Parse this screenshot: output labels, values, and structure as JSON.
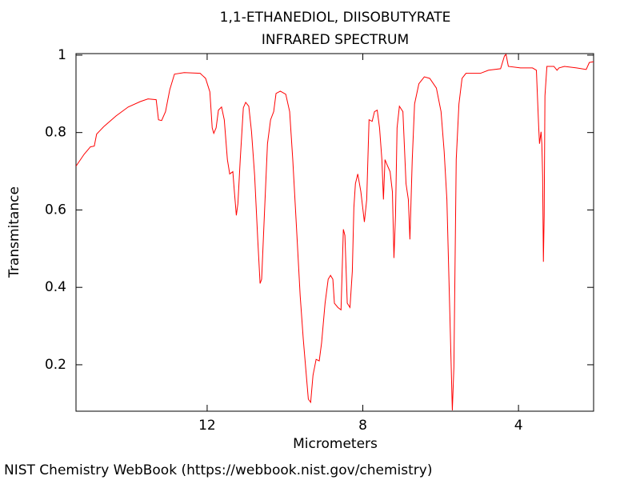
{
  "chart_data": {
    "type": "line",
    "title": "1,1-ETHANEDIOL, DIISOBUTYRATE",
    "subtitle": "INFRARED SPECTRUM",
    "x_label": "Micrometers",
    "y_label": "Transmitance",
    "source": "NIST Chemistry WebBook (https://webbook.nist.gov/chemistry)",
    "xlim": [
      15.37,
      2.07
    ],
    "ylim": [
      0.08,
      1.004
    ],
    "xticks": [
      12,
      8,
      4
    ],
    "yticks": [
      0.2,
      0.4,
      0.6,
      0.8,
      1
    ],
    "grid": false,
    "series": [
      {
        "color": "#ff0000",
        "x": [
          15.37,
          15.16,
          15.0,
          14.9,
          14.84,
          14.65,
          14.34,
          14.03,
          13.72,
          13.52,
          13.31,
          13.25,
          13.17,
          13.07,
          12.96,
          12.84,
          12.59,
          12.18,
          12.04,
          11.93,
          11.87,
          11.83,
          11.77,
          11.71,
          11.63,
          11.56,
          11.48,
          11.42,
          11.34,
          11.3,
          11.25,
          11.21,
          11.15,
          11.07,
          11.01,
          10.93,
          10.86,
          10.78,
          10.7,
          10.64,
          10.6,
          10.53,
          10.45,
          10.37,
          10.29,
          10.23,
          10.12,
          9.98,
          9.88,
          9.8,
          9.71,
          9.61,
          9.53,
          9.47,
          9.4,
          9.34,
          9.28,
          9.2,
          9.12,
          9.06,
          8.97,
          8.89,
          8.83,
          8.77,
          8.73,
          8.64,
          8.56,
          8.5,
          8.46,
          8.4,
          8.33,
          8.27,
          8.23,
          8.19,
          8.13,
          8.05,
          7.96,
          7.9,
          7.84,
          7.76,
          7.7,
          7.63,
          7.57,
          7.51,
          7.47,
          7.43,
          7.39,
          7.3,
          7.24,
          7.2,
          7.16,
          7.12,
          7.06,
          6.97,
          6.89,
          6.83,
          6.79,
          6.73,
          6.67,
          6.56,
          6.42,
          6.28,
          6.11,
          5.99,
          5.91,
          5.84,
          5.76,
          5.7,
          5.66,
          5.6,
          5.53,
          5.45,
          5.35,
          4.98,
          4.77,
          4.46,
          4.36,
          4.32,
          4.26,
          3.95,
          3.64,
          3.54,
          3.48,
          3.46,
          3.42,
          3.4,
          3.38,
          3.36,
          3.34,
          3.32,
          3.27,
          3.09,
          3.01,
          2.96,
          2.82,
          2.51,
          2.26,
          2.18,
          2.07
        ],
        "values": [
          0.713,
          0.744,
          0.763,
          0.765,
          0.796,
          0.816,
          0.843,
          0.866,
          0.88,
          0.887,
          0.885,
          0.833,
          0.831,
          0.854,
          0.911,
          0.951,
          0.955,
          0.953,
          0.94,
          0.905,
          0.812,
          0.798,
          0.812,
          0.858,
          0.866,
          0.833,
          0.73,
          0.693,
          0.699,
          0.647,
          0.586,
          0.616,
          0.73,
          0.864,
          0.878,
          0.868,
          0.802,
          0.689,
          0.524,
          0.41,
          0.421,
          0.586,
          0.771,
          0.833,
          0.854,
          0.901,
          0.907,
          0.899,
          0.854,
          0.73,
          0.565,
          0.379,
          0.266,
          0.194,
          0.111,
          0.103,
          0.173,
          0.214,
          0.21,
          0.256,
          0.359,
          0.421,
          0.431,
          0.421,
          0.359,
          0.348,
          0.342,
          0.55,
          0.534,
          0.359,
          0.348,
          0.441,
          0.606,
          0.668,
          0.693,
          0.647,
          0.569,
          0.627,
          0.833,
          0.829,
          0.854,
          0.858,
          0.812,
          0.73,
          0.627,
          0.73,
          0.72,
          0.699,
          0.647,
          0.476,
          0.586,
          0.812,
          0.868,
          0.854,
          0.668,
          0.627,
          0.524,
          0.73,
          0.874,
          0.926,
          0.944,
          0.94,
          0.915,
          0.854,
          0.751,
          0.627,
          0.317,
          0.082,
          0.194,
          0.73,
          0.874,
          0.94,
          0.953,
          0.953,
          0.961,
          0.965,
          0.998,
          1.002,
          0.971,
          0.967,
          0.967,
          0.961,
          0.812,
          0.771,
          0.802,
          0.771,
          0.689,
          0.466,
          0.586,
          0.895,
          0.971,
          0.971,
          0.961,
          0.967,
          0.971,
          0.967,
          0.963,
          0.981,
          0.983
        ]
      }
    ]
  }
}
